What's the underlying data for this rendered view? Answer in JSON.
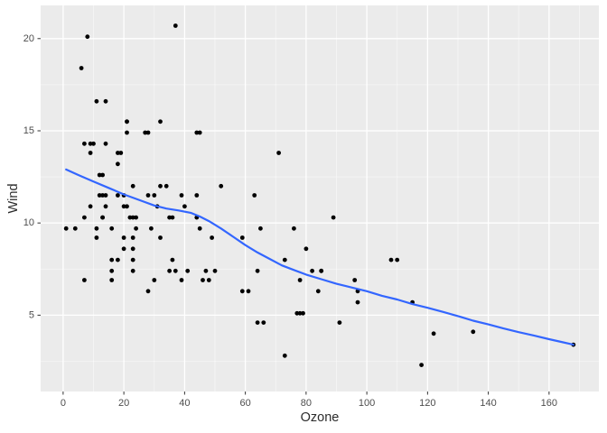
{
  "chart_data": {
    "type": "scatter",
    "title": "",
    "xlabel": "Ozone",
    "ylabel": "Wind",
    "legend": "none",
    "grid": "on",
    "x_axis": {
      "ticks": [
        0,
        20,
        40,
        60,
        80,
        100,
        120,
        140,
        160
      ],
      "minor_ticks": [
        10,
        30,
        50,
        70,
        90,
        110,
        130,
        150,
        170
      ],
      "range": [
        -7.4,
        176.4
      ]
    },
    "y_axis": {
      "ticks": [
        5,
        10,
        15,
        20
      ],
      "minor_ticks": [
        2.5,
        7.5,
        12.5,
        17.5
      ],
      "range": [
        0.86,
        21.8
      ]
    },
    "points": [
      [
        41,
        7.4
      ],
      [
        36,
        8.0
      ],
      [
        12,
        12.6
      ],
      [
        18,
        11.5
      ],
      [
        28,
        14.9
      ],
      [
        23,
        8.6
      ],
      [
        19,
        13.8
      ],
      [
        8,
        20.1
      ],
      [
        7,
        6.9
      ],
      [
        16,
        9.7
      ],
      [
        11,
        9.2
      ],
      [
        14,
        10.9
      ],
      [
        18,
        13.2
      ],
      [
        14,
        11.5
      ],
      [
        34,
        12.0
      ],
      [
        6,
        18.4
      ],
      [
        30,
        11.5
      ],
      [
        11,
        9.7
      ],
      [
        1,
        9.7
      ],
      [
        11,
        16.6
      ],
      [
        4,
        9.7
      ],
      [
        32,
        12.0
      ],
      [
        23,
        12.0
      ],
      [
        45,
        14.9
      ],
      [
        115,
        5.7
      ],
      [
        37,
        7.4
      ],
      [
        29,
        9.7
      ],
      [
        71,
        13.8
      ],
      [
        39,
        11.5
      ],
      [
        23,
        8.0
      ],
      [
        21,
        14.9
      ],
      [
        37,
        20.7
      ],
      [
        20,
        9.2
      ],
      [
        12,
        11.5
      ],
      [
        13,
        10.3
      ],
      [
        135,
        4.1
      ],
      [
        49,
        9.2
      ],
      [
        32,
        9.2
      ],
      [
        64,
        4.6
      ],
      [
        40,
        10.9
      ],
      [
        77,
        5.1
      ],
      [
        97,
        6.3
      ],
      [
        97,
        5.7
      ],
      [
        85,
        7.4
      ],
      [
        10,
        14.3
      ],
      [
        27,
        14.9
      ],
      [
        7,
        14.3
      ],
      [
        48,
        6.9
      ],
      [
        35,
        10.3
      ],
      [
        61,
        6.3
      ],
      [
        79,
        5.1
      ],
      [
        63,
        11.5
      ],
      [
        16,
        6.9
      ],
      [
        80,
        8.6
      ],
      [
        108,
        8.0
      ],
      [
        20,
        8.6
      ],
      [
        52,
        12.0
      ],
      [
        82,
        7.4
      ],
      [
        50,
        7.4
      ],
      [
        64,
        7.4
      ],
      [
        59,
        9.2
      ],
      [
        39,
        6.9
      ],
      [
        9,
        13.8
      ],
      [
        16,
        7.4
      ],
      [
        78,
        6.9
      ],
      [
        35,
        7.4
      ],
      [
        66,
        4.6
      ],
      [
        122,
        4.0
      ],
      [
        89,
        10.3
      ],
      [
        110,
        8.0
      ],
      [
        44,
        11.5
      ],
      [
        28,
        11.5
      ],
      [
        65,
        9.7
      ],
      [
        22,
        10.3
      ],
      [
        59,
        6.3
      ],
      [
        23,
        7.4
      ],
      [
        31,
        10.9
      ],
      [
        44,
        10.3
      ],
      [
        21,
        15.5
      ],
      [
        9,
        14.3
      ],
      [
        45,
        9.7
      ],
      [
        168,
        3.4
      ],
      [
        73,
        8.0
      ],
      [
        76,
        9.7
      ],
      [
        118,
        2.3
      ],
      [
        84,
        6.3
      ],
      [
        85,
        7.4
      ],
      [
        96,
        6.9
      ],
      [
        78,
        5.1
      ],
      [
        73,
        2.8
      ],
      [
        91,
        4.6
      ],
      [
        47,
        7.4
      ],
      [
        32,
        15.5
      ],
      [
        20,
        10.9
      ],
      [
        23,
        10.3
      ],
      [
        21,
        10.9
      ],
      [
        24,
        9.7
      ],
      [
        44,
        14.9
      ],
      [
        21,
        15.5
      ],
      [
        28,
        6.3
      ],
      [
        9,
        10.9
      ],
      [
        13,
        11.5
      ],
      [
        46,
        6.9
      ],
      [
        18,
        13.8
      ],
      [
        13,
        10.3
      ],
      [
        24,
        10.3
      ],
      [
        16,
        8.0
      ],
      [
        13,
        12.6
      ],
      [
        23,
        9.2
      ],
      [
        36,
        10.3
      ],
      [
        7,
        10.3
      ],
      [
        14,
        16.6
      ],
      [
        30,
        6.9
      ],
      [
        14,
        14.3
      ],
      [
        18,
        8.0
      ],
      [
        20,
        11.5
      ]
    ],
    "smooth_line": {
      "name": "loess-smooth",
      "color": "#3366FF",
      "points": [
        [
          1,
          12.9
        ],
        [
          5,
          12.6
        ],
        [
          10,
          12.25
        ],
        [
          15,
          11.9
        ],
        [
          20,
          11.55
        ],
        [
          25,
          11.25
        ],
        [
          30,
          10.95
        ],
        [
          34,
          10.78
        ],
        [
          38,
          10.68
        ],
        [
          42,
          10.55
        ],
        [
          45,
          10.35
        ],
        [
          48,
          10.1
        ],
        [
          52,
          9.7
        ],
        [
          56,
          9.25
        ],
        [
          60,
          8.8
        ],
        [
          64,
          8.4
        ],
        [
          68,
          8.05
        ],
        [
          72,
          7.7
        ],
        [
          76,
          7.45
        ],
        [
          80,
          7.2
        ],
        [
          85,
          6.95
        ],
        [
          90,
          6.7
        ],
        [
          95,
          6.5
        ],
        [
          100,
          6.3
        ],
        [
          105,
          6.05
        ],
        [
          110,
          5.85
        ],
        [
          115,
          5.6
        ],
        [
          120,
          5.4
        ],
        [
          125,
          5.18
        ],
        [
          130,
          4.95
        ],
        [
          135,
          4.7
        ],
        [
          140,
          4.5
        ],
        [
          145,
          4.28
        ],
        [
          150,
          4.08
        ],
        [
          155,
          3.9
        ],
        [
          160,
          3.7
        ],
        [
          164,
          3.55
        ],
        [
          168,
          3.4
        ]
      ]
    },
    "style": {
      "outer_bg": "#FFFFFF",
      "panel_bg": "#EBEBEB",
      "grid_major": "#FFFFFF",
      "grid_minor": "#FFFFFF",
      "grid_minor_opacity": 0.55,
      "point_color": "#000000",
      "tick_label_color": "#4D4D4D",
      "tick_mark_color": "#333333",
      "axis_title_color": "#2b2b2b"
    }
  }
}
